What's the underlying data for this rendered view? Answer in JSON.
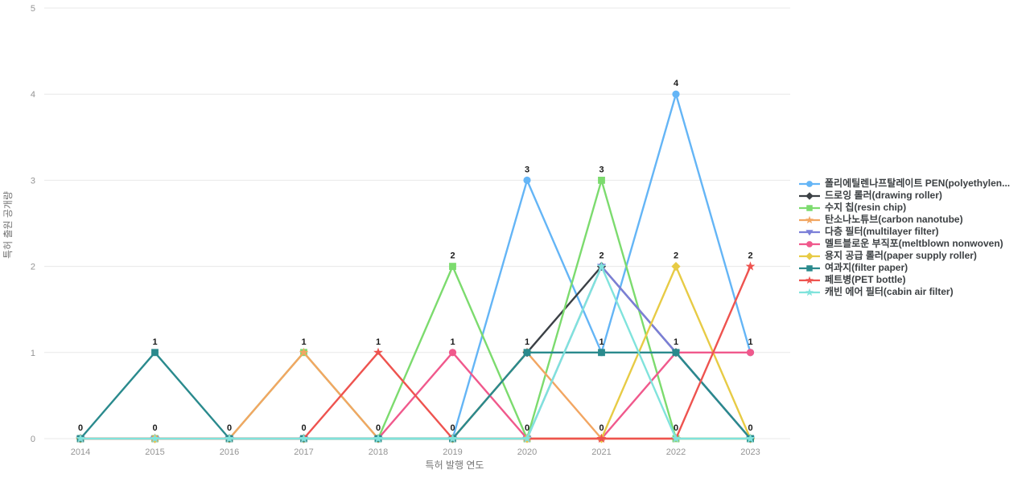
{
  "chart_data": {
    "type": "line",
    "title": "",
    "xlabel": "특허 발행 연도",
    "ylabel": "특허 출원 공개량",
    "x": [
      2014,
      2015,
      2016,
      2017,
      2018,
      2019,
      2020,
      2021,
      2022,
      2023
    ],
    "yticks": [
      0,
      1,
      2,
      3,
      4,
      5
    ],
    "ylim": [
      0,
      5
    ],
    "grid": true,
    "legend_position": "right",
    "label_color": "#1a1a1a",
    "tick_color": "#949494",
    "axis_title_color": "#757575",
    "grid_color": "#e8e8e8",
    "series": [
      {
        "name": "폴리에틸렌나프탈레이트 PEN(polyethylen...",
        "color": "#64B5F6",
        "marker": "circle",
        "values": [
          0,
          0,
          0,
          0,
          0,
          0,
          3,
          1,
          4,
          1
        ]
      },
      {
        "name": "드로잉 롤러(drawing roller)",
        "color": "#3B4045",
        "marker": "diamond",
        "values": [
          0,
          0,
          0,
          0,
          0,
          0,
          1,
          2,
          1,
          0
        ]
      },
      {
        "name": "수지 칩(resin chip)",
        "color": "#7CDB6E",
        "marker": "square",
        "values": [
          0,
          0,
          0,
          1,
          0,
          2,
          0,
          3,
          0,
          0
        ]
      },
      {
        "name": "탄소나노튜브(carbon nanotube)",
        "color": "#F2A662",
        "marker": "star",
        "values": [
          0,
          0,
          0,
          1,
          0,
          0,
          1,
          0,
          0,
          0
        ]
      },
      {
        "name": "다층 필터(multilayer filter)",
        "color": "#7B7FD8",
        "marker": "tri-down",
        "values": [
          0,
          0,
          0,
          0,
          0,
          0,
          0,
          2,
          1,
          0
        ]
      },
      {
        "name": "멜트블로운 부직포(meltblown nonwoven)",
        "color": "#F0598C",
        "marker": "circle",
        "values": [
          0,
          0,
          0,
          0,
          0,
          1,
          0,
          0,
          1,
          1
        ]
      },
      {
        "name": "용지 공급 롤러(paper supply roller)",
        "color": "#E7CB45",
        "marker": "diamond",
        "values": [
          0,
          0,
          0,
          0,
          0,
          0,
          0,
          0,
          2,
          0
        ]
      },
      {
        "name": "여과지(filter paper)",
        "color": "#2A8A8D",
        "marker": "square",
        "values": [
          0,
          1,
          0,
          0,
          0,
          0,
          1,
          1,
          1,
          0
        ]
      },
      {
        "name": "페트병(PET bottle)",
        "color": "#EE534F",
        "marker": "star",
        "values": [
          0,
          0,
          0,
          0,
          1,
          0,
          0,
          0,
          0,
          2
        ]
      },
      {
        "name": "캐빈 에어 필터(cabin air filter)",
        "color": "#80E3DC",
        "marker": "star",
        "values": [
          0,
          0,
          0,
          0,
          0,
          0,
          0,
          2,
          0,
          0
        ]
      }
    ]
  }
}
